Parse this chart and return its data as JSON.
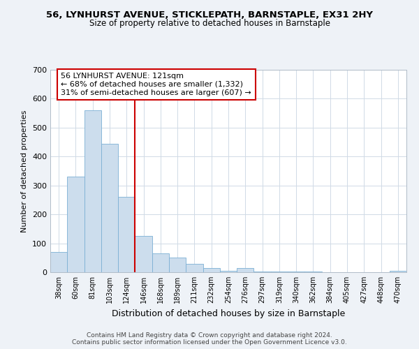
{
  "title1": "56, LYNHURST AVENUE, STICKLEPATH, BARNSTAPLE, EX31 2HY",
  "title2": "Size of property relative to detached houses in Barnstaple",
  "xlabel": "Distribution of detached houses by size in Barnstaple",
  "ylabel": "Number of detached properties",
  "categories": [
    "38sqm",
    "60sqm",
    "81sqm",
    "103sqm",
    "124sqm",
    "146sqm",
    "168sqm",
    "189sqm",
    "211sqm",
    "232sqm",
    "254sqm",
    "276sqm",
    "297sqm",
    "319sqm",
    "340sqm",
    "362sqm",
    "384sqm",
    "405sqm",
    "427sqm",
    "448sqm",
    "470sqm"
  ],
  "values": [
    70,
    330,
    560,
    445,
    260,
    125,
    65,
    50,
    30,
    15,
    5,
    15,
    3,
    3,
    2,
    2,
    1,
    1,
    1,
    1,
    5
  ],
  "highlight_index": 4,
  "bar_color": "#ccdded",
  "bar_edge_color": "#7bafd4",
  "highlight_line_color": "#cc0000",
  "annotation_text": "56 LYNHURST AVENUE: 121sqm\n← 68% of detached houses are smaller (1,332)\n31% of semi-detached houses are larger (607) →",
  "annotation_box_color": "#ffffff",
  "annotation_box_edge": "#cc0000",
  "ylim": [
    0,
    700
  ],
  "yticks": [
    0,
    100,
    200,
    300,
    400,
    500,
    600,
    700
  ],
  "footer": "Contains HM Land Registry data © Crown copyright and database right 2024.\nContains public sector information licensed under the Open Government Licence v3.0.",
  "background_color": "#eef2f7",
  "plot_bg_color": "#ffffff",
  "grid_color": "#d0dae6"
}
